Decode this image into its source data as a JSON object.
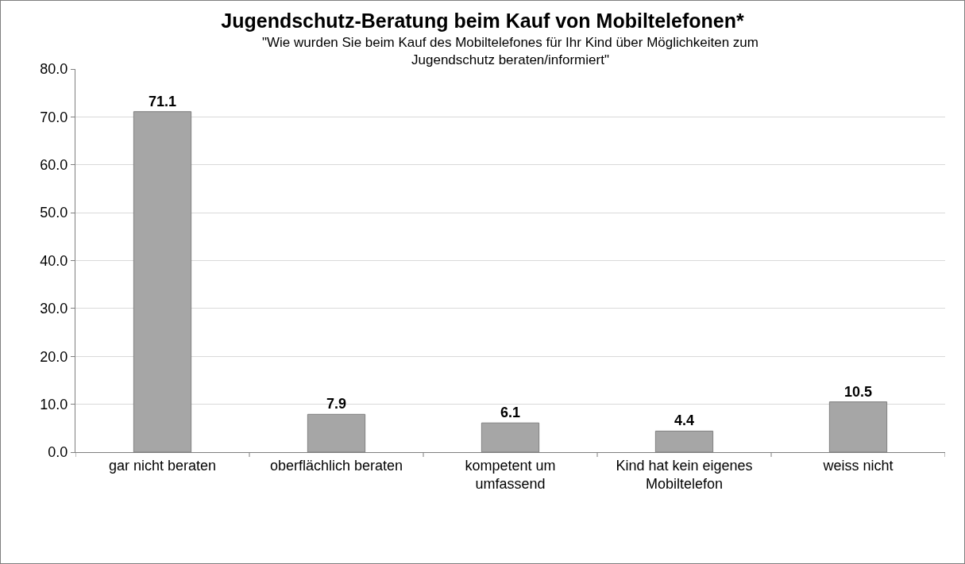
{
  "chart_data": {
    "type": "bar",
    "title": "Jugendschutz-Beratung beim Kauf von Mobiltelefonen*",
    "subtitle": "\"Wie wurden Sie beim Kauf des Mobiltelefones für Ihr Kind über Möglichkeiten zum Jugendschutz beraten/informiert\"",
    "categories": [
      "gar nicht beraten",
      "oberflächlich beraten",
      "kompetent um umfassend",
      "Kind hat kein eigenes Mobiltelefon",
      "weiss nicht"
    ],
    "values": [
      71.1,
      7.9,
      6.1,
      4.4,
      10.5
    ],
    "color": "#a6a6a6",
    "ylim": [
      0,
      80
    ],
    "yticks": [
      {
        "value": 0,
        "label": "0.0"
      },
      {
        "value": 10,
        "label": "10.0"
      },
      {
        "value": 20,
        "label": "20.0"
      },
      {
        "value": 30,
        "label": "30.0"
      },
      {
        "value": 40,
        "label": "40.0"
      },
      {
        "value": 50,
        "label": "50.0"
      },
      {
        "value": 60,
        "label": "60.0"
      },
      {
        "value": 70,
        "label": "70.0"
      },
      {
        "value": 80,
        "label": "80.0"
      }
    ],
    "grid": "y",
    "data_labels": true
  }
}
